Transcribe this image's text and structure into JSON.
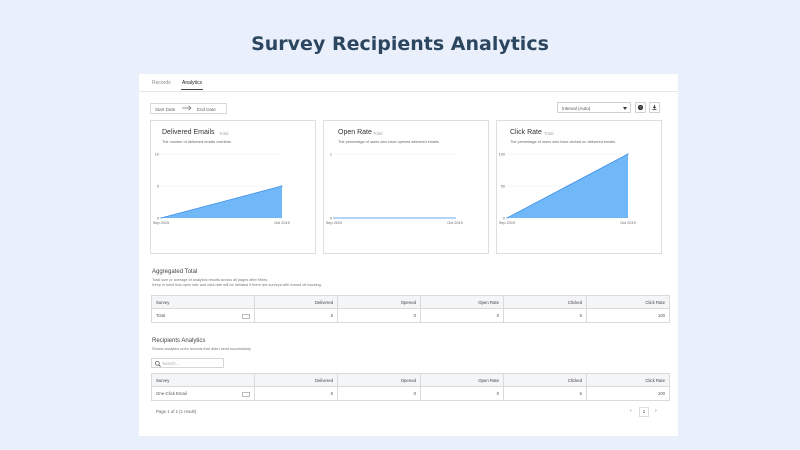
{
  "page": {
    "title": "Survey Recipients Analytics"
  },
  "tabs": [
    {
      "label": "Records",
      "active": false
    },
    {
      "label": "Analytics",
      "active": true
    }
  ],
  "toolbar": {
    "start_date_placeholder": "Start Date",
    "end_date_placeholder": "End Date",
    "arrow_icon": "arrow-right-icon",
    "interval_value": "Interval (Auto)",
    "help_icon": "help-icon",
    "download_icon": "download-icon"
  },
  "charts": [
    {
      "title": "Delivered Emails",
      "subtitle": "Total",
      "description": "The number of delivered emails overtime."
    },
    {
      "title": "Open Rate",
      "subtitle": "Total",
      "description": "The percentage of users who have opened delivered emails."
    },
    {
      "title": "Click Rate",
      "subtitle": "Total",
      "description": "The percentage of users who have clicked on delivered emails."
    }
  ],
  "chart_data": [
    {
      "type": "area",
      "title": "Delivered Emails",
      "categories": [
        "Sep 2019",
        "Oct 2019"
      ],
      "values": [
        0,
        5
      ],
      "yticks": [
        "10",
        "5",
        "0"
      ],
      "ylim": [
        0,
        10
      ],
      "grid": true,
      "color": "#61b0f7"
    },
    {
      "type": "area",
      "title": "Open Rate",
      "categories": [
        "Sep 2019",
        "Oct 2019"
      ],
      "values": [
        0,
        0
      ],
      "yticks": [
        "1",
        "0"
      ],
      "ylim": [
        0,
        1
      ],
      "grid": true,
      "color": "#61b0f7"
    },
    {
      "type": "area",
      "title": "Click Rate",
      "categories": [
        "Sep 2019",
        "Oct 2019"
      ],
      "values": [
        0,
        100
      ],
      "yticks": [
        "100",
        "50",
        "0"
      ],
      "ylim": [
        0,
        100
      ],
      "grid": true,
      "color": "#61b0f7"
    }
  ],
  "aggregated": {
    "title": "Aggregated Total",
    "desc_line1": "Total sum or average of analytics results across all pages after filters.",
    "desc_line2": "Keep in mind that open rate and click rate will be deflated if there are surveys with turned off tracking.",
    "columns": [
      "Survey",
      "Delivered",
      "Opened",
      "Open Rate",
      "Clicked",
      "Click Rate"
    ],
    "row": [
      "Total",
      "5",
      "0",
      "0",
      "5",
      "100"
    ]
  },
  "recipients": {
    "title": "Recipients Analytics",
    "description": "Shows analytics on/to records that didn't send successfully.",
    "search_placeholder": "Search...",
    "columns": [
      "Survey",
      "Delivered",
      "Opened",
      "Open Rate",
      "Clicked",
      "Click Rate"
    ],
    "row": [
      "One-Click Email",
      "5",
      "0",
      "0",
      "5",
      "100"
    ]
  },
  "pagination": {
    "summary": "Page 1 of 1 (1 result)",
    "prev": "‹",
    "current": "1",
    "next": "›"
  },
  "colors": {
    "background": "#e9f0fb",
    "title": "#2c4660",
    "area_fill": "#61b0f7",
    "area_stroke": "#3b8de8"
  }
}
